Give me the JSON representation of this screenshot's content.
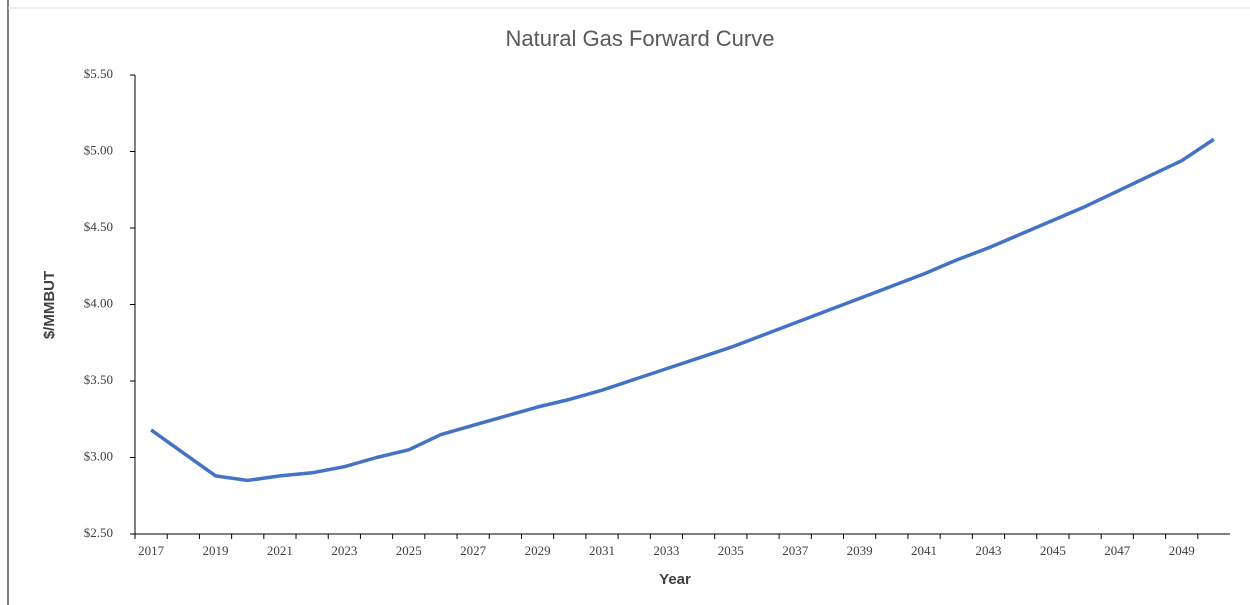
{
  "chart_data": {
    "type": "line",
    "title": "Natural Gas Forward Curve",
    "x_label": "Year",
    "y_label": "$/MMBUT",
    "categories": [
      "2017",
      null,
      "2019",
      null,
      "2021",
      null,
      "2023",
      null,
      "2025",
      null,
      "2027",
      null,
      "2029",
      null,
      "2031",
      null,
      "2033",
      null,
      "2035",
      null,
      "2037",
      null,
      "2039",
      null,
      "2041",
      null,
      "2043",
      null,
      "2045",
      null,
      "2047",
      null,
      "2049",
      null
    ],
    "series": [
      {
        "name": "Natural Gas",
        "color": "#4472c4",
        "values": [
          3.18,
          3.03,
          2.88,
          2.85,
          2.88,
          2.9,
          2.94,
          3.0,
          3.05,
          3.15,
          3.21,
          3.27,
          3.33,
          3.38,
          3.44,
          3.51,
          3.58,
          3.65,
          3.72,
          3.8,
          3.88,
          3.96,
          4.04,
          4.12,
          4.2,
          4.29,
          4.37,
          4.46,
          4.55,
          4.64,
          4.74,
          4.84,
          4.94,
          5.08
        ]
      }
    ],
    "ylim": [
      2.5,
      5.5
    ],
    "yticks": [
      {
        "value": 2.5,
        "label": "$2.50"
      },
      {
        "value": 3,
        "label": "$3.00"
      },
      {
        "value": 3.5,
        "label": "$3.50"
      },
      {
        "value": 4,
        "label": "$4.00"
      },
      {
        "value": 4.5,
        "label": "$4.50"
      },
      {
        "value": 5,
        "label": "$5.00"
      },
      {
        "value": 5.5,
        "label": "$5.50"
      }
    ]
  }
}
